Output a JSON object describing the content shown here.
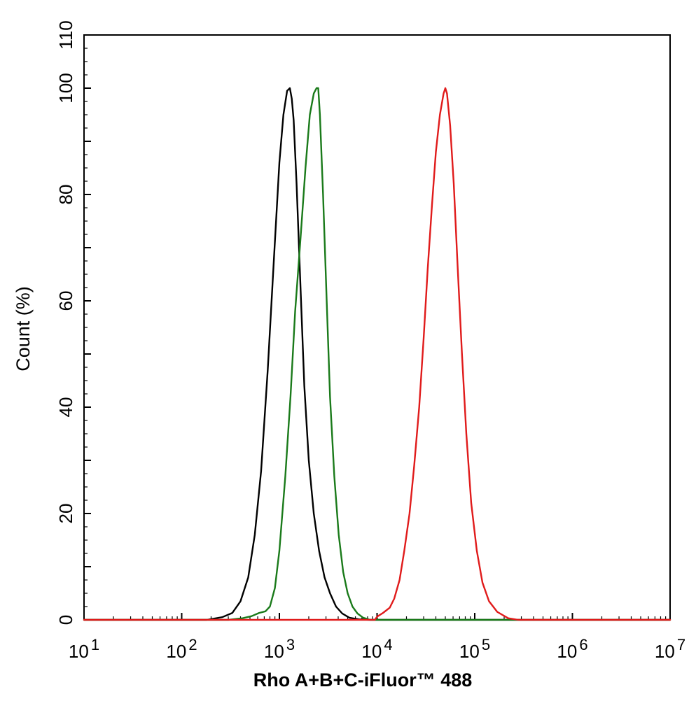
{
  "chart_data": {
    "type": "line",
    "xscale": "log",
    "xlim": [
      10,
      10000000
    ],
    "ylim": [
      0,
      110
    ],
    "grid": false,
    "xlabel": "Rho A+B+C-iFluor™ 488",
    "ylabel": "Count  (%)",
    "x_ticks": [
      {
        "value": 10,
        "base": "10",
        "exp": "1"
      },
      {
        "value": 100,
        "base": "10",
        "exp": "2"
      },
      {
        "value": 1000,
        "base": "10",
        "exp": "3"
      },
      {
        "value": 10000,
        "base": "10",
        "exp": "4"
      },
      {
        "value": 100000,
        "base": "10",
        "exp": "5"
      },
      {
        "value": 1000000,
        "base": "10",
        "exp": "6"
      },
      {
        "value": 10000000,
        "base": "10",
        "exp": "7"
      }
    ],
    "y_ticks": [
      "0",
      "20",
      "40",
      "60",
      "80",
      "100",
      "110"
    ],
    "series": [
      {
        "color": "#000000",
        "x": [
          10,
          100,
          180,
          260,
          330,
          400,
          480,
          560,
          650,
          760,
          880,
          1000,
          1100,
          1200,
          1280,
          1340,
          1400,
          1500,
          1650,
          1800,
          2000,
          2250,
          2550,
          2900,
          3300,
          3800,
          4400,
          5200,
          6500,
          8500,
          10000,
          10000000
        ],
        "y": [
          0,
          0,
          0,
          0.5,
          1.3,
          3.5,
          8,
          16,
          28,
          47,
          68,
          86,
          95,
          99.5,
          100,
          98,
          94,
          82,
          62,
          44,
          30,
          20,
          13,
          8,
          5,
          2.5,
          1.2,
          0.4,
          0.1,
          0,
          0,
          0
        ]
      },
      {
        "color": "#1a7a1a",
        "x": [
          10,
          300,
          420,
          520,
          620,
          720,
          800,
          900,
          1000,
          1150,
          1300,
          1450,
          1650,
          1850,
          2050,
          2250,
          2400,
          2500,
          2600,
          2800,
          3050,
          3300,
          3650,
          4050,
          4500,
          5000,
          5600,
          6300,
          7200,
          8500,
          10000000
        ],
        "y": [
          0,
          0,
          0.3,
          0.7,
          1.3,
          1.6,
          2.5,
          6,
          13,
          27,
          42,
          58,
          72,
          85,
          95,
          99,
          100,
          100,
          95,
          80,
          60,
          42,
          27,
          16,
          9,
          5,
          2.5,
          1.2,
          0.4,
          0,
          0
        ]
      },
      {
        "color": "#e01b1b",
        "x": [
          10,
          9500,
          10000,
          11500,
          13500,
          15000,
          17000,
          19000,
          21500,
          24000,
          27000,
          30000,
          33000,
          36500,
          40000,
          44000,
          48000,
          50000,
          52000,
          56000,
          61000,
          67000,
          74000,
          82000,
          92000,
          105000,
          120000,
          140000,
          170000,
          220000,
          280000,
          10000000
        ],
        "y": [
          0,
          0,
          0.6,
          1.3,
          2.3,
          4,
          7.5,
          13,
          20,
          29,
          40,
          53,
          66,
          78,
          88,
          95,
          99,
          100,
          99,
          93,
          82,
          66,
          50,
          35,
          22,
          13,
          7,
          3.5,
          1.5,
          0.3,
          0,
          0
        ]
      }
    ]
  }
}
